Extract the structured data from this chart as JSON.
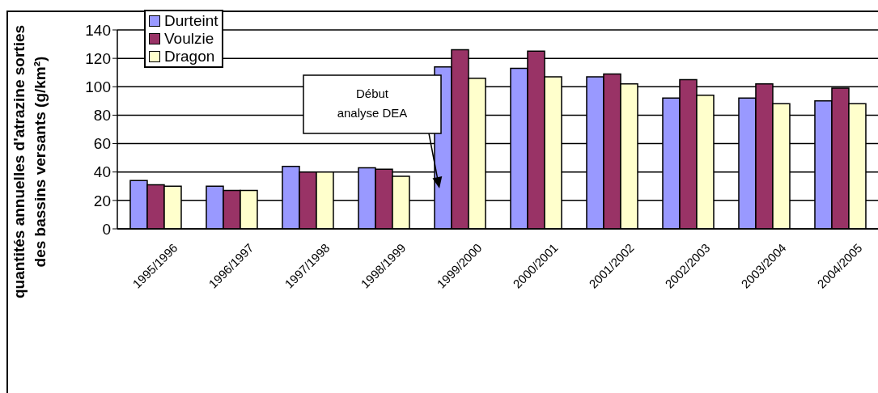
{
  "chart_data": {
    "type": "bar",
    "ylabel": "quantités annuelles d'atrazine sorties\ndes bassins versants (g/km²)",
    "categories": [
      "1995/1996",
      "1996/1997",
      "1997/1998",
      "1998/1999",
      "1999/2000",
      "2000/2001",
      "2001/2002",
      "2002/2003",
      "2003/2004",
      "2004/2005"
    ],
    "series": [
      {
        "name": "Durteint",
        "color": "#9999ff",
        "values": [
          34,
          30,
          44,
          43,
          114,
          113,
          107,
          92,
          92,
          90
        ]
      },
      {
        "name": "Voulzie",
        "color": "#993366",
        "values": [
          31,
          27,
          40,
          42,
          126,
          125,
          109,
          105,
          102,
          99
        ]
      },
      {
        "name": "Dragon",
        "color": "#ffffcc",
        "values": [
          30,
          27,
          40,
          37,
          106,
          107,
          102,
          94,
          88,
          88
        ]
      }
    ],
    "ylim": [
      0,
      140
    ],
    "yticks": [
      0,
      20,
      40,
      60,
      80,
      100,
      120,
      140
    ],
    "grid": "y",
    "legend": "top left",
    "annotations": [
      "Début\nanalyse DEA"
    ]
  }
}
